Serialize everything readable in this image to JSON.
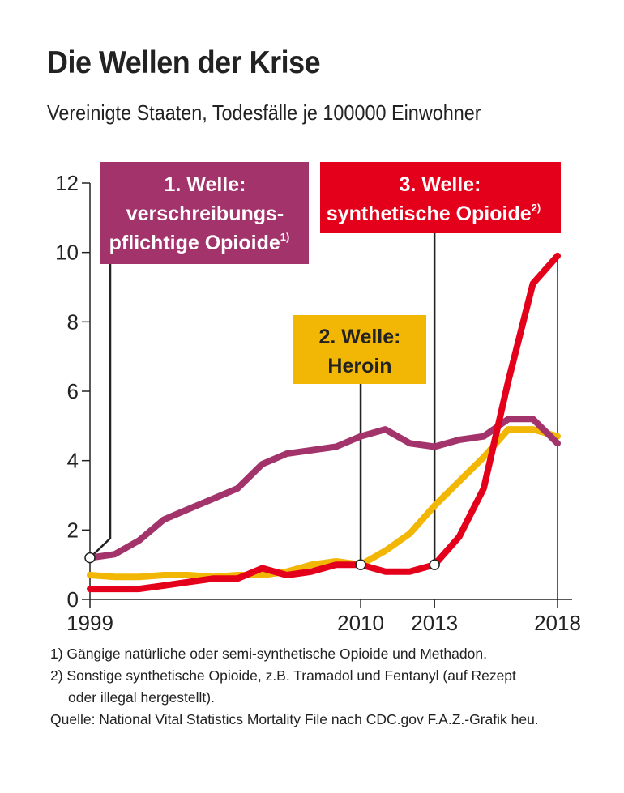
{
  "title": "Die Wellen der Krise",
  "subtitle": "Vereinigte Staaten, Todesfälle je 100000 Einwohner",
  "chart_data": {
    "type": "line",
    "title": "Die Wellen der Krise",
    "subtitle": "Vereinigte Staaten, Todesfälle je 100000 Einwohner",
    "xlabel": "",
    "ylabel": "",
    "x": [
      1999,
      2000,
      2001,
      2002,
      2003,
      2004,
      2005,
      2006,
      2007,
      2008,
      2009,
      2010,
      2011,
      2012,
      2013,
      2014,
      2015,
      2016,
      2017,
      2018
    ],
    "xlim": [
      1999,
      2018
    ],
    "ylim": [
      0,
      12
    ],
    "xticks": [
      1999,
      2010,
      2013,
      2018
    ],
    "xtick_labels": [
      "1999",
      "2010",
      "2013",
      "2018"
    ],
    "yticks": [
      0,
      2,
      4,
      6,
      8,
      10,
      12
    ],
    "ytick_labels": [
      "0",
      "2",
      "4",
      "6",
      "8",
      "10",
      "12"
    ],
    "grid": false,
    "series": [
      {
        "name": "1. Welle: verschreibungspflichtige Opioide",
        "color": "#a3336b",
        "values": [
          1.2,
          1.3,
          1.7,
          2.3,
          2.6,
          2.9,
          3.2,
          3.9,
          4.2,
          4.3,
          4.4,
          4.7,
          4.9,
          4.5,
          4.4,
          4.6,
          4.7,
          5.2,
          5.2,
          4.5
        ]
      },
      {
        "name": "2. Welle: Heroin",
        "color": "#f2b705",
        "values": [
          0.7,
          0.65,
          0.65,
          0.7,
          0.7,
          0.65,
          0.7,
          0.7,
          0.8,
          1.0,
          1.1,
          1.0,
          1.4,
          1.9,
          2.7,
          3.4,
          4.1,
          4.9,
          4.9,
          4.7
        ]
      },
      {
        "name": "3. Welle: synthetische Opioide",
        "color": "#e4001b",
        "values": [
          0.3,
          0.3,
          0.3,
          0.4,
          0.5,
          0.6,
          0.6,
          0.9,
          0.7,
          0.8,
          1.0,
          1.0,
          0.8,
          0.8,
          1.0,
          1.8,
          3.2,
          6.3,
          9.1,
          9.9
        ]
      }
    ],
    "callouts": [
      {
        "series": 0,
        "x": 1999,
        "y": 1.2,
        "color": "#a3336b",
        "label_lines": [
          "1. Welle:",
          "verschreibungs-",
          "pflichtige Opioide"
        ],
        "footnote_mark": "1)"
      },
      {
        "series": 1,
        "x": 2010,
        "y": 1.0,
        "color": "#f2b705",
        "label_lines": [
          "2. Welle:",
          "Heroin"
        ],
        "footnote_mark": ""
      },
      {
        "series": 2,
        "x": 2013,
        "y": 1.0,
        "color": "#e4001b",
        "label_lines": [
          "3. Welle:",
          "synthetische Opioide"
        ],
        "footnote_mark": "2)"
      }
    ]
  },
  "footnotes": {
    "note1": "1) Gängige natürliche oder semi-synthetische Opioide und Methadon.",
    "note2_line1": "2) Sonstige synthetische Opioide, z.B. Tramadol und Fentanyl (auf Rezept",
    "note2_line2": "oder illegal hergestellt).",
    "source": "Quelle: National Vital Statistics Mortality File nach CDC.gov  F.A.Z.-Grafik heu."
  }
}
